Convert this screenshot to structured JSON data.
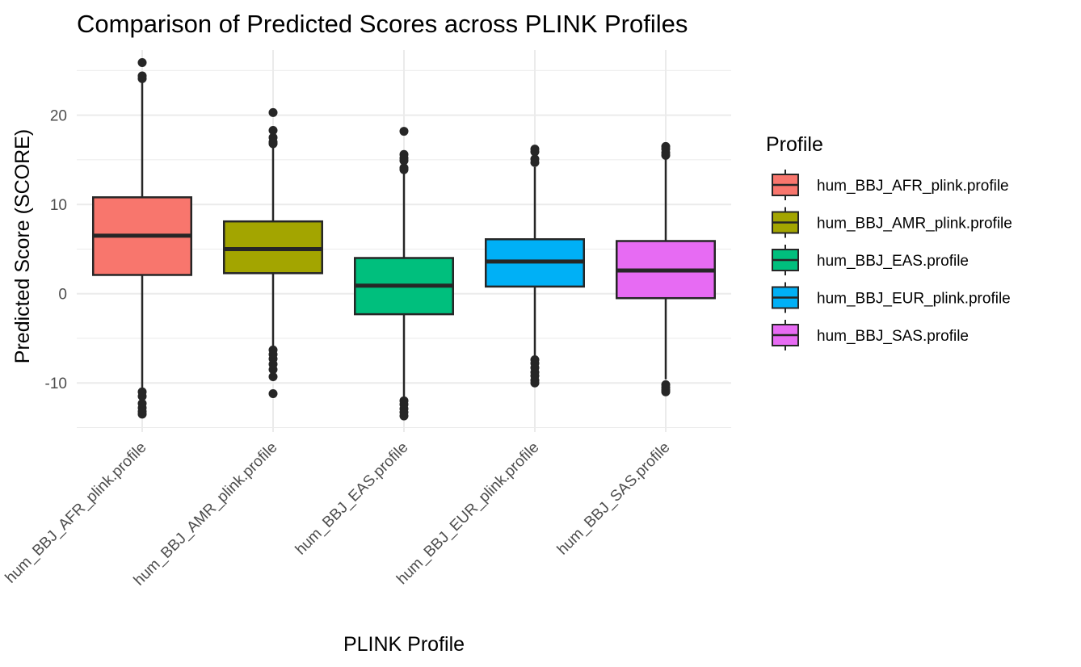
{
  "chart_data": {
    "type": "boxplot",
    "title": "Comparison of Predicted Scores across PLINK Profiles",
    "xlabel": "PLINK Profile",
    "ylabel": "Predicted Score (SCORE)",
    "ylim": [
      -15.5,
      27.3
    ],
    "yticks": [
      -10,
      0,
      10,
      20
    ],
    "grid": true,
    "legend": {
      "title": "Profile",
      "position": "right"
    },
    "categories": [
      "hum_BBJ_AFR_plink.profile",
      "hum_BBJ_AMR_plink.profile",
      "hum_BBJ_EAS.profile",
      "hum_BBJ_EUR_plink.profile",
      "hum_BBJ_SAS.profile"
    ],
    "series": [
      {
        "name": "hum_BBJ_AFR_plink.profile",
        "color": "#F8766D",
        "whisker_low": -10.8,
        "q1": 2.1,
        "median": 6.5,
        "q3": 10.8,
        "whisker_high": 23.9,
        "outliers": [
          25.9,
          24.4,
          24.1,
          -11.0,
          -11.5,
          -12.3,
          -12.8,
          -13.2,
          -13.5
        ]
      },
      {
        "name": "hum_BBJ_AMR_plink.profile",
        "color": "#A3A500",
        "whisker_low": -6.1,
        "q1": 2.3,
        "median": 5.0,
        "q3": 8.1,
        "whisker_high": 16.6,
        "outliers": [
          20.3,
          18.3,
          17.5,
          17.0,
          16.8,
          -6.3,
          -6.8,
          -7.3,
          -7.9,
          -8.5,
          -9.3,
          -11.2
        ]
      },
      {
        "name": "hum_BBJ_EAS.profile",
        "color": "#00BF7D",
        "whisker_low": -11.8,
        "q1": -2.3,
        "median": 0.9,
        "q3": 4.0,
        "whisker_high": 13.6,
        "outliers": [
          18.2,
          15.6,
          15.2,
          14.9,
          14.1,
          13.9,
          -12.0,
          -12.4,
          -12.9,
          -13.3,
          -13.7
        ]
      },
      {
        "name": "hum_BBJ_EUR_plink.profile",
        "color": "#00B0F6",
        "whisker_low": -7.2,
        "q1": 0.8,
        "median": 3.6,
        "q3": 6.1,
        "whisker_high": 14.2,
        "outliers": [
          16.2,
          15.9,
          15.1,
          14.7,
          -7.4,
          -7.8,
          -8.3,
          -8.8,
          -9.2,
          -9.7,
          -10.0
        ]
      },
      {
        "name": "hum_BBJ_SAS.profile",
        "color": "#E76BF3",
        "whisker_low": -9.6,
        "q1": -0.5,
        "median": 2.6,
        "q3": 5.9,
        "whisker_high": 15.3,
        "outliers": [
          16.5,
          16.2,
          15.8,
          15.5,
          -10.2,
          -10.5,
          -10.8,
          -11.0
        ]
      }
    ]
  }
}
